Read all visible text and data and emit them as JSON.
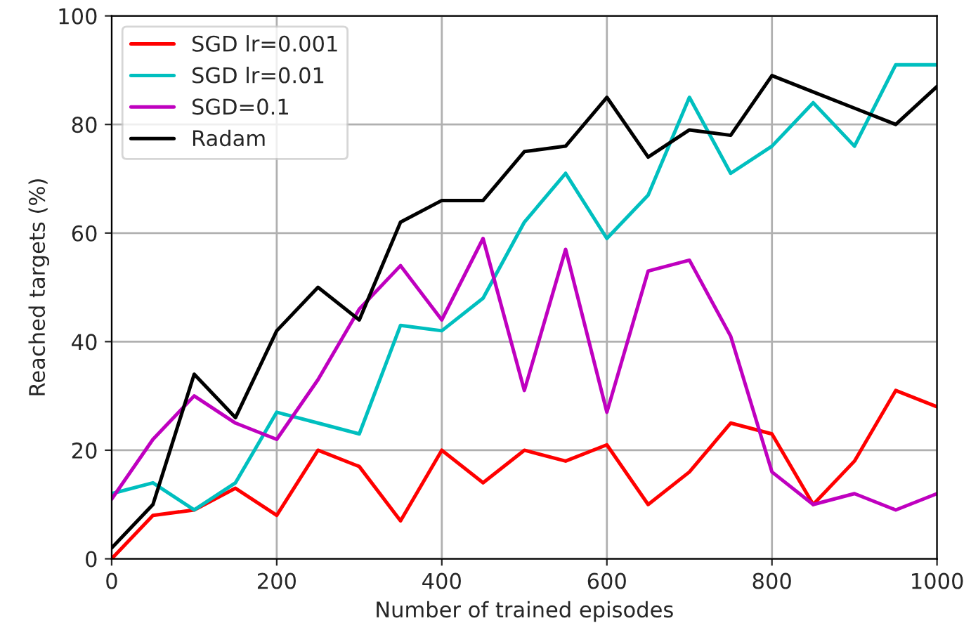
{
  "chart_data": {
    "type": "line",
    "xlabel": "Number of trained episodes",
    "ylabel": "Reached targets (%)",
    "x": [
      0,
      50,
      100,
      150,
      200,
      250,
      300,
      350,
      400,
      450,
      500,
      550,
      600,
      650,
      700,
      750,
      800,
      850,
      900,
      950,
      1000
    ],
    "series": [
      {
        "name": "SGD lr=0.001",
        "color": "#ff0000",
        "values": [
          0,
          8,
          9,
          13,
          8,
          20,
          17,
          7,
          20,
          14,
          20,
          18,
          21,
          10,
          16,
          25,
          23,
          10,
          18,
          31,
          28
        ]
      },
      {
        "name": "SGD lr=0.01",
        "color": "#00bfbf",
        "values": [
          12,
          14,
          9,
          14,
          27,
          25,
          23,
          43,
          42,
          48,
          62,
          71,
          59,
          67,
          85,
          71,
          76,
          84,
          76,
          91,
          91
        ]
      },
      {
        "name": "SGD=0.1",
        "color": "#bf00bf",
        "values": [
          11,
          22,
          30,
          25,
          22,
          33,
          46,
          54,
          44,
          59,
          31,
          57,
          27,
          53,
          55,
          41,
          16,
          10,
          12,
          9,
          12
        ]
      },
      {
        "name": "Radam",
        "color": "#000000",
        "values": [
          2,
          10,
          34,
          26,
          42,
          50,
          44,
          62,
          66,
          66,
          75,
          76,
          85,
          74,
          79,
          78,
          89,
          86,
          83,
          80,
          87
        ]
      }
    ],
    "xlim": [
      0,
      1000
    ],
    "ylim": [
      0,
      100
    ],
    "xticks": [
      0,
      200,
      400,
      600,
      800,
      1000
    ],
    "yticks": [
      0,
      20,
      40,
      60,
      80,
      100
    ],
    "grid": true,
    "legend": "top left",
    "marker": "none",
    "line_style": "solid"
  }
}
